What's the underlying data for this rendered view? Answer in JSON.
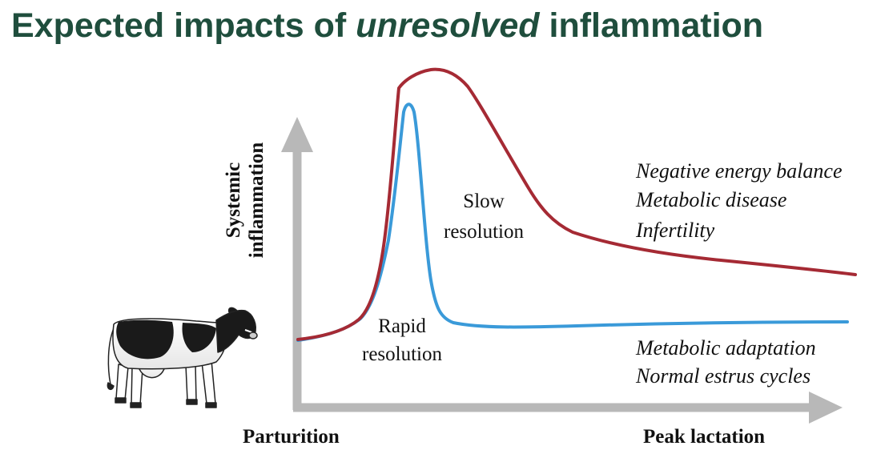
{
  "title": {
    "prefix": "Expected impacts of ",
    "emphasis": "unresolved",
    "suffix": " inflammation"
  },
  "axes": {
    "y_label_line1": "Systemic",
    "y_label_line2": "inflammation",
    "x_start_label": "Parturition",
    "x_end_label": "Peak lactation"
  },
  "curves": {
    "slow": {
      "label_line1": "Slow",
      "label_line2": "resolution",
      "color": "#a52a34"
    },
    "rapid": {
      "label_line1": "Rapid",
      "label_line2": "resolution",
      "color": "#3a9ad9"
    }
  },
  "outcomes": {
    "unresolved": [
      "Negative energy balance",
      "Metabolic disease",
      "Infertility"
    ],
    "resolved": [
      "Metabolic adaptation",
      "Normal estrus cycles"
    ]
  },
  "colors": {
    "title": "#1f4e3d",
    "axis": "#b8b8b8"
  },
  "illustration": "holstein-cow-icon"
}
